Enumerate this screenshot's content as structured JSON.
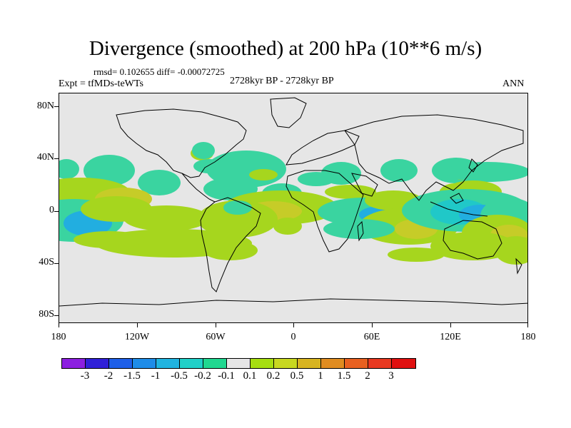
{
  "title": "Divergence (smoothed) at 200 hPa (10**6 m/s)",
  "stats": "rmsd= 0.102655 diff= -0.00072725",
  "experiment": "Expt = tfMDs-teWTs",
  "period": "2728kyr BP - 2728kyr BP",
  "season": "ANN",
  "lat_labels": [
    "80N",
    "40N",
    "0",
    "40S",
    "80S"
  ],
  "lon_labels": [
    "180",
    "120W",
    "60W",
    "0",
    "60E",
    "120E",
    "180"
  ],
  "colorbar": {
    "colors": [
      "#8c1fe0",
      "#3020d8",
      "#1e5fe8",
      "#1e8ce8",
      "#20b4e0",
      "#20d0c8",
      "#20d890",
      "#e6e6e6",
      "#a6de10",
      "#c8d820",
      "#d8b420",
      "#e08c20",
      "#e86020",
      "#e83820",
      "#e01010"
    ],
    "labels": [
      "-3",
      "-2",
      "-1.5",
      "-1",
      "-0.5",
      "-0.2",
      "-0.1",
      "0.1",
      "0.2",
      "0.5",
      "1",
      "1.5",
      "2",
      "3"
    ]
  },
  "palette": {
    "weak_negative": "#3ad4a0",
    "mid_negative": "#20c8c8",
    "strong_negative": "#22aee0",
    "weak_positive": "#a6d61e",
    "mid_positive": "#c6cc28",
    "strong_positive": "#d0aa30",
    "background": "#e6e6e6"
  }
}
